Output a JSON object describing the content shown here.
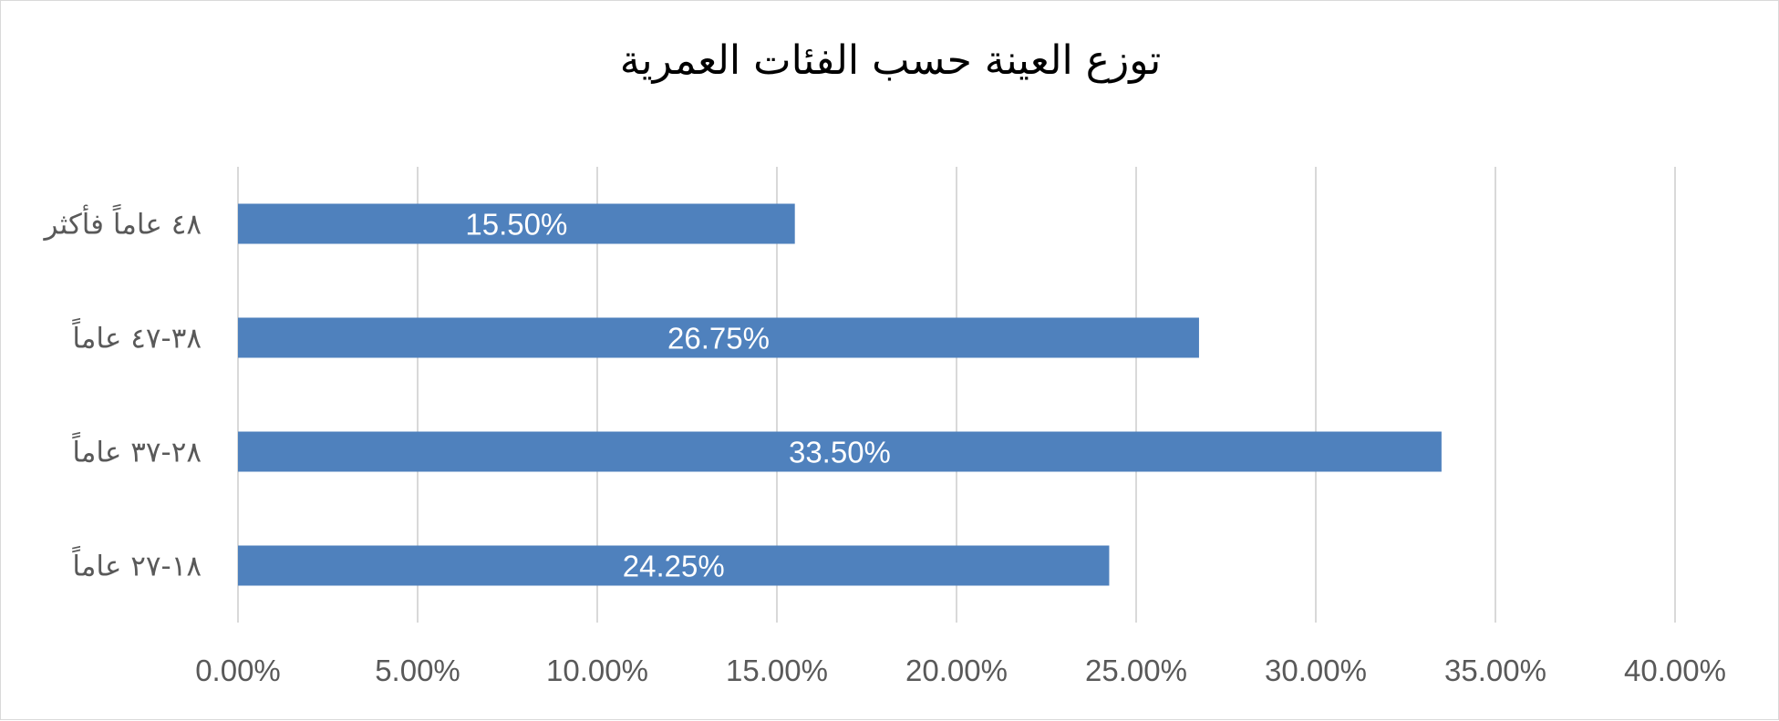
{
  "chart_data": {
    "type": "bar",
    "orientation": "horizontal",
    "title": "توزع العينة حسب الفئات العمرية",
    "categories": [
      "٤٨ عاماً فأكثر",
      "٣٨-٤٧ عاماً",
      "٢٨-٣٧ عاماً",
      "١٨-٢٧ عاماً"
    ],
    "values": [
      15.5,
      26.75,
      33.5,
      24.25
    ],
    "data_labels": [
      "15.50%",
      "26.75%",
      "33.50%",
      "24.25%"
    ],
    "xlim": [
      0,
      40
    ],
    "x_ticks": [
      0,
      5,
      10,
      15,
      20,
      25,
      30,
      35,
      40
    ],
    "x_tick_labels": [
      "0.00%",
      "5.00%",
      "10.00%",
      "15.00%",
      "20.00%",
      "25.00%",
      "30.00%",
      "35.00%",
      "40.00%"
    ],
    "grid": "vertical",
    "legend": "none",
    "colors": {
      "bar": "#4f81bd",
      "grid": "#d9d9d9",
      "axis_text": "#595959"
    }
  }
}
